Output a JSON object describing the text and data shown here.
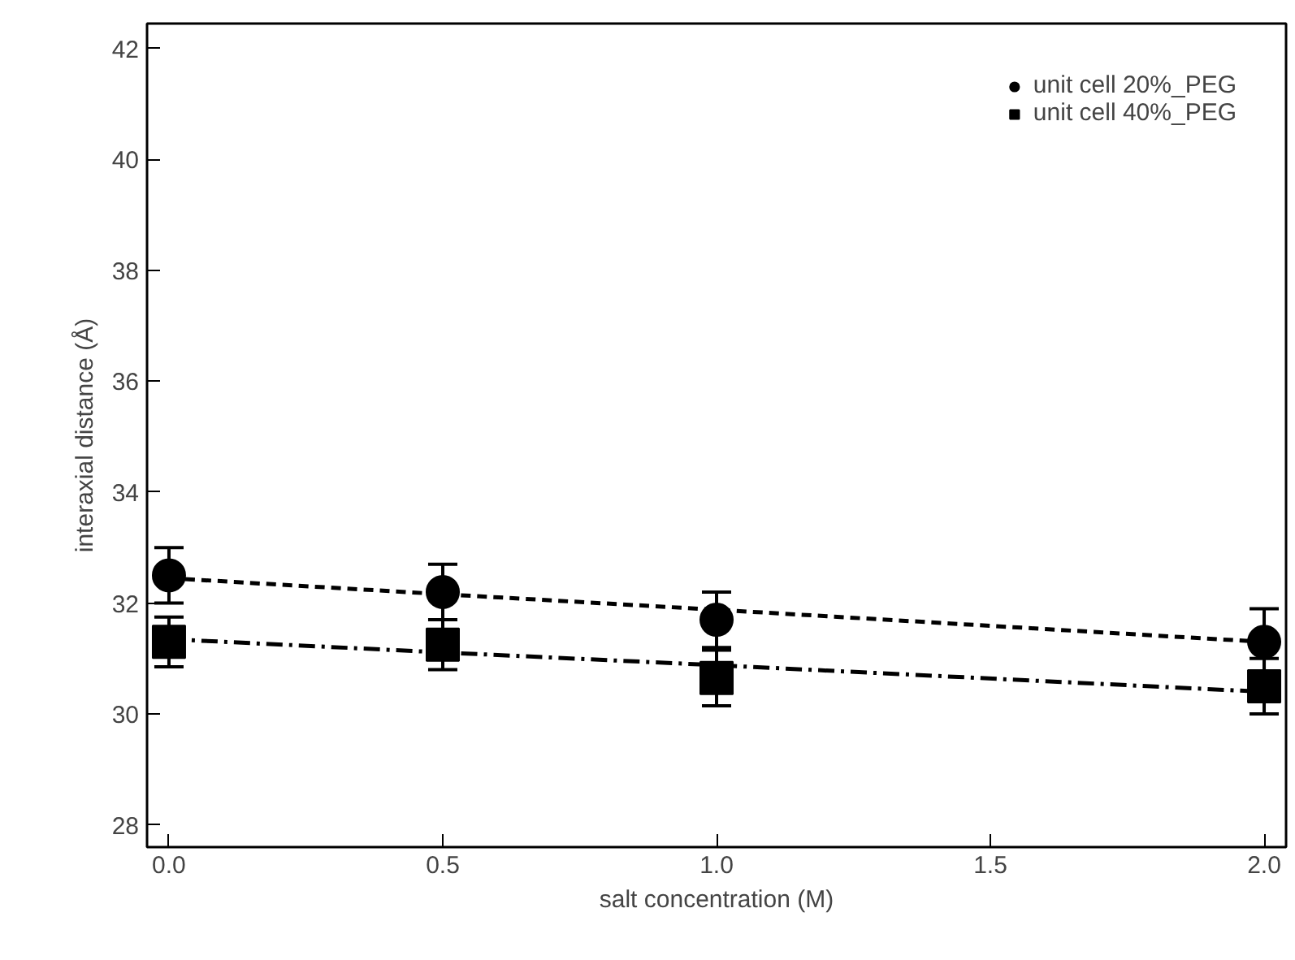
{
  "chart_data": {
    "type": "scatter",
    "xlabel": "salt concentration (M)",
    "ylabel": "interaxial distance (Å)",
    "x": [
      0.0,
      0.5,
      1.0,
      2.0
    ],
    "series": [
      {
        "name": "unit cell 20%_PEG",
        "color": "#000000",
        "marker": "circle",
        "values": [
          32.5,
          32.2,
          31.7,
          31.3
        ],
        "errors": [
          0.5,
          0.5,
          0.5,
          0.6
        ]
      },
      {
        "name": "unit cell 40%_PEG",
        "color": "#000000",
        "marker": "square",
        "values": [
          31.3,
          31.25,
          30.65,
          30.5
        ],
        "errors": [
          0.45,
          0.45,
          0.5,
          0.5
        ]
      },
      {
        "type": "line",
        "color": "#000000",
        "line_style": "dashed",
        "values": [
          32.45,
          32.16,
          31.88,
          31.3
        ]
      },
      {
        "type": "line",
        "color": "#000000",
        "line_style": "dashdot",
        "values": [
          31.35,
          31.11,
          30.88,
          30.4
        ]
      }
    ],
    "xlim": [
      -0.04,
      2.04
    ],
    "ylim": [
      27.6,
      42.45
    ],
    "xticks": [
      {
        "value": 0,
        "label": "0.0"
      },
      {
        "value": 0.5,
        "label": "0.5"
      },
      {
        "value": 1,
        "label": "1.0"
      },
      {
        "value": 1.5,
        "label": "1.5"
      },
      {
        "value": 2,
        "label": "2.0"
      }
    ],
    "yticks": [
      28,
      30,
      32,
      34,
      36,
      38,
      40,
      42
    ],
    "grid": false,
    "legend": "top right"
  }
}
